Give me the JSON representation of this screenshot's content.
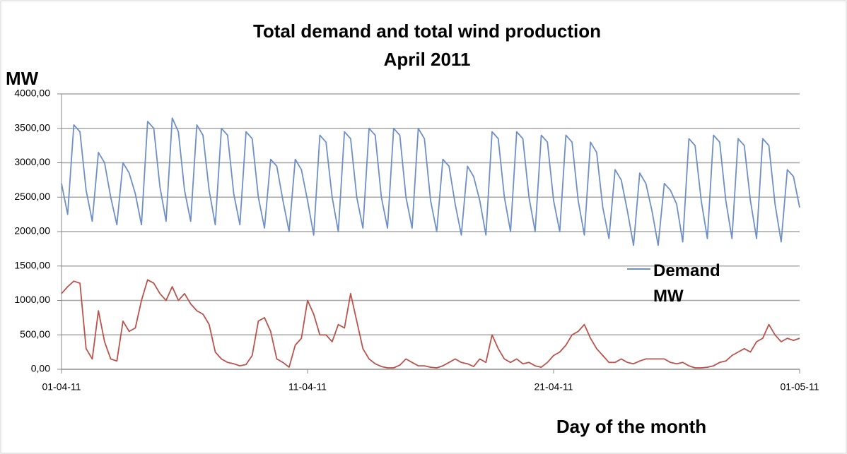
{
  "chart_data": {
    "type": "line",
    "title": "Total demand and total wind production",
    "subtitle": "April 2011",
    "y_label": "MW",
    "x_label": "Day of the month",
    "xlim": [
      1,
      31
    ],
    "xticks": [
      {
        "value": 1,
        "label": "01-04-11"
      },
      {
        "value": 11,
        "label": "11-04-11"
      },
      {
        "value": 21,
        "label": "21-04-11"
      },
      {
        "value": 31,
        "label": "01-05-11"
      }
    ],
    "ylim": [
      0,
      4000
    ],
    "yticks": [
      {
        "value": 0,
        "label": "0,00"
      },
      {
        "value": 500,
        "label": "500,00"
      },
      {
        "value": 1000,
        "label": "1000,00"
      },
      {
        "value": 1500,
        "label": "1500,00"
      },
      {
        "value": 2000,
        "label": "2000,00"
      },
      {
        "value": 2500,
        "label": "2500,00"
      },
      {
        "value": 3000,
        "label": "3000,00"
      },
      {
        "value": 3500,
        "label": "3500,00"
      },
      {
        "value": 4000,
        "label": "4000,00"
      }
    ],
    "grid": true,
    "x": [
      1,
      1.25,
      1.5,
      1.75,
      2,
      2.25,
      2.5,
      2.75,
      3,
      3.25,
      3.5,
      3.75,
      4,
      4.25,
      4.5,
      4.75,
      5,
      5.25,
      5.5,
      5.75,
      6,
      6.25,
      6.5,
      6.75,
      7,
      7.25,
      7.5,
      7.75,
      8,
      8.25,
      8.5,
      8.75,
      9,
      9.25,
      9.5,
      9.75,
      10,
      10.25,
      10.5,
      10.75,
      11,
      11.25,
      11.5,
      11.75,
      12,
      12.25,
      12.5,
      12.75,
      13,
      13.25,
      13.5,
      13.75,
      14,
      14.25,
      14.5,
      14.75,
      15,
      15.25,
      15.5,
      15.75,
      16,
      16.25,
      16.5,
      16.75,
      17,
      17.25,
      17.5,
      17.75,
      18,
      18.25,
      18.5,
      18.75,
      19,
      19.25,
      19.5,
      19.75,
      20,
      20.25,
      20.5,
      20.75,
      21,
      21.25,
      21.5,
      21.75,
      22,
      22.25,
      22.5,
      22.75,
      23,
      23.25,
      23.5,
      23.75,
      24,
      24.25,
      24.5,
      24.75,
      25,
      25.25,
      25.5,
      25.75,
      26,
      26.25,
      26.5,
      26.75,
      27,
      27.25,
      27.5,
      27.75,
      28,
      28.25,
      28.5,
      28.75,
      29,
      29.25,
      29.5,
      29.75,
      30,
      30.25,
      30.5,
      30.75,
      31
    ],
    "series": [
      {
        "name": "Demand MW",
        "color": "#6f8fc7",
        "values": [
          2700,
          2250,
          3550,
          3450,
          2600,
          2150,
          3150,
          3000,
          2500,
          2100,
          3000,
          2850,
          2550,
          2100,
          3600,
          3500,
          2650,
          2150,
          3650,
          3450,
          2600,
          2150,
          3550,
          3400,
          2600,
          2100,
          3500,
          3400,
          2550,
          2100,
          3450,
          3350,
          2500,
          2050,
          3050,
          2950,
          2450,
          2000,
          3050,
          2900,
          2450,
          1950,
          3400,
          3300,
          2500,
          2000,
          3450,
          3350,
          2500,
          2050,
          3500,
          3400,
          2500,
          2050,
          3500,
          3400,
          2500,
          2050,
          3500,
          3350,
          2450,
          2000,
          3050,
          2950,
          2400,
          1950,
          2950,
          2800,
          2450,
          1950,
          3450,
          3350,
          2500,
          2000,
          3450,
          3350,
          2500,
          2000,
          3400,
          3300,
          2450,
          2000,
          3400,
          3300,
          2450,
          1950,
          3300,
          3150,
          2350,
          1900,
          2900,
          2750,
          2300,
          1800,
          2850,
          2700,
          2300,
          1800,
          2700,
          2600,
          2400,
          1850,
          3350,
          3250,
          2450,
          1900,
          3400,
          3300,
          2450,
          1900,
          3350,
          3250,
          2450,
          1900,
          3350,
          3250,
          2400,
          1850,
          2900,
          2800,
          2350
        ]
      },
      {
        "color": "#b9534c",
        "values": [
          1100,
          1200,
          1280,
          1250,
          300,
          150,
          850,
          400,
          150,
          120,
          700,
          550,
          600,
          1000,
          1300,
          1250,
          1100,
          1000,
          1200,
          1000,
          1100,
          950,
          850,
          800,
          650,
          250,
          150,
          100,
          80,
          50,
          70,
          200,
          700,
          750,
          550,
          150,
          100,
          30,
          350,
          450,
          1000,
          800,
          500,
          500,
          400,
          650,
          600,
          1100,
          700,
          300,
          150,
          80,
          40,
          20,
          20,
          60,
          150,
          100,
          50,
          50,
          30,
          20,
          50,
          100,
          150,
          100,
          80,
          40,
          150,
          100,
          500,
          300,
          150,
          100,
          150,
          80,
          100,
          50,
          30,
          100,
          200,
          250,
          350,
          500,
          550,
          650,
          450,
          300,
          200,
          100,
          100,
          150,
          100,
          80,
          120,
          150,
          150,
          150,
          150,
          100,
          80,
          100,
          50,
          20,
          20,
          30,
          50,
          100,
          120,
          200,
          250,
          300,
          250,
          400,
          450,
          650,
          500,
          400,
          450,
          420,
          450
        ]
      }
    ]
  }
}
